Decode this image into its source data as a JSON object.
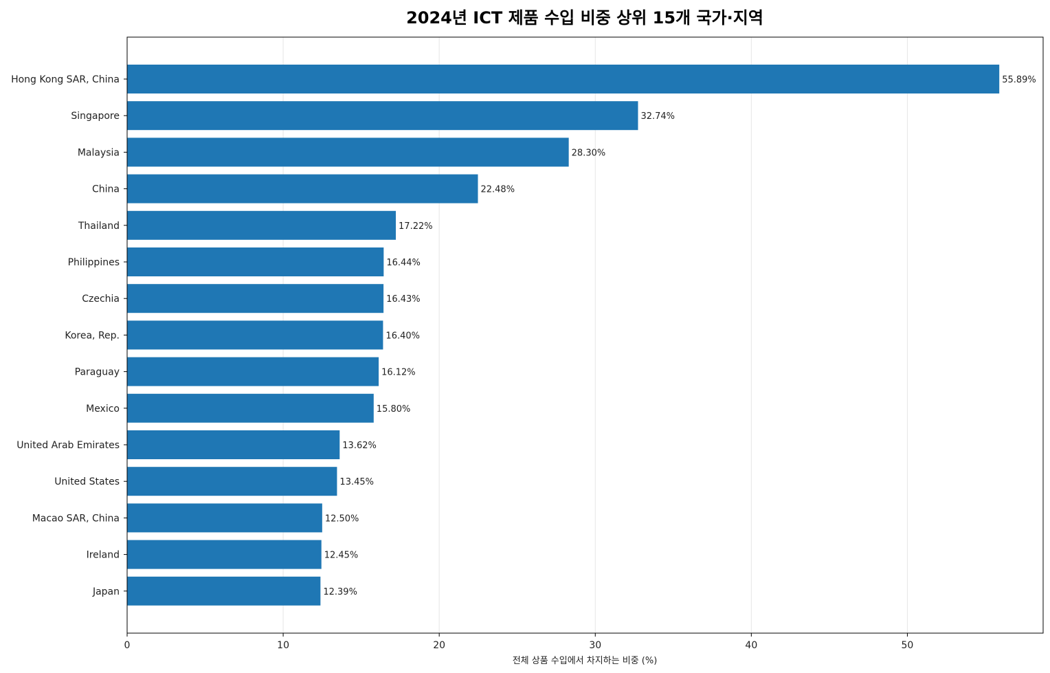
{
  "chart_data": {
    "type": "bar",
    "orientation": "horizontal",
    "title": "2024년 ICT 제품 수입 비중 상위 15개 국가·지역",
    "xlabel": "전체 상품 수입에서 차지하는 비중 (%)",
    "ylabel": "",
    "xlim": [
      0,
      58.7
    ],
    "xticks": [
      0,
      10,
      20,
      30,
      40,
      50
    ],
    "grid": "x",
    "bar_color": "#1f77b4",
    "value_suffix": "%",
    "categories": [
      "Hong Kong SAR, China",
      "Singapore",
      "Malaysia",
      "China",
      "Thailand",
      "Philippines",
      "Czechia",
      "Korea, Rep.",
      "Paraguay",
      "Mexico",
      "United Arab Emirates",
      "United States",
      "Macao SAR, China",
      "Ireland",
      "Japan"
    ],
    "values": [
      55.89,
      32.74,
      28.3,
      22.48,
      17.22,
      16.44,
      16.43,
      16.4,
      16.12,
      15.8,
      13.62,
      13.45,
      12.5,
      12.45,
      12.39
    ],
    "value_labels": [
      "55.89%",
      "32.74%",
      "28.30%",
      "22.48%",
      "17.22%",
      "16.44%",
      "16.43%",
      "16.40%",
      "16.12%",
      "15.80%",
      "13.62%",
      "13.45%",
      "12.50%",
      "12.45%",
      "12.39%"
    ]
  }
}
